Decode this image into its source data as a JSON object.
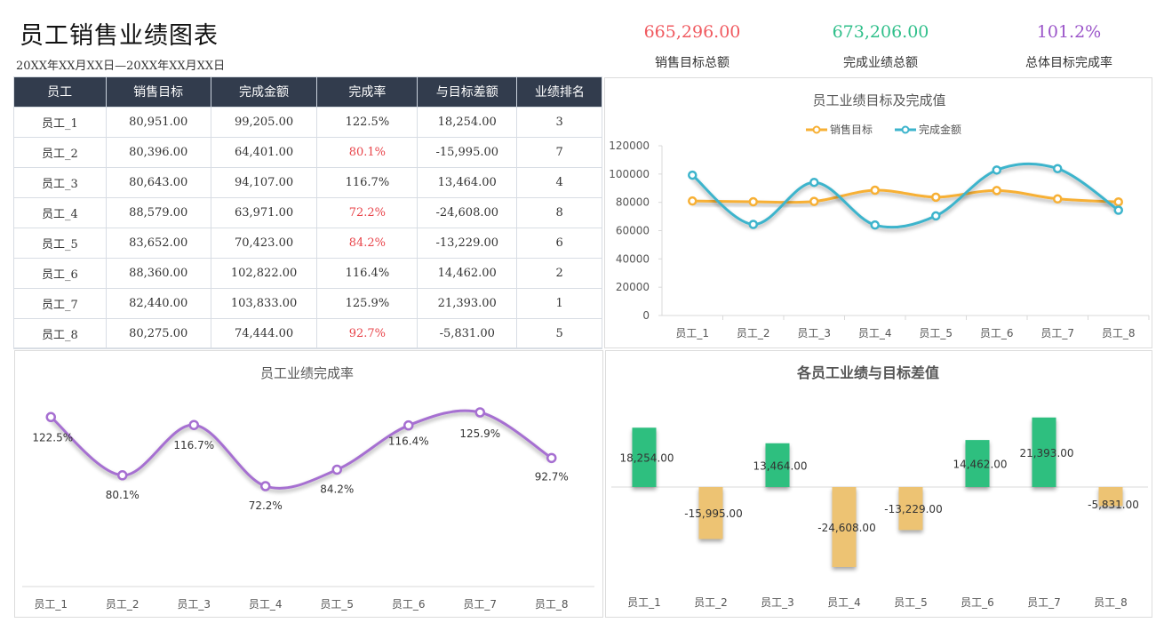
{
  "header": {
    "title": "员工销售业绩图表",
    "date_range": "20XX年XX月XX日—20XX年XX月XX日"
  },
  "kpis": [
    {
      "value": "665,296.00",
      "label": "销售目标总额",
      "color": "#f0595f"
    },
    {
      "value": "673,206.00",
      "label": "完成业绩总额",
      "color": "#2fbf8a"
    },
    {
      "value": "101.2%",
      "label": "总体目标完成率",
      "color": "#9b55c9"
    }
  ],
  "table": {
    "headers": [
      "员工",
      "销售目标",
      "完成金额",
      "完成率",
      "与目标差额",
      "业绩排名"
    ],
    "rows": [
      {
        "name": "员工_1",
        "target": "80,951.00",
        "done": "99,205.00",
        "rate": "122.5%",
        "diff": "18,254.00",
        "rank": "3",
        "below": false
      },
      {
        "name": "员工_2",
        "target": "80,396.00",
        "done": "64,401.00",
        "rate": "80.1%",
        "diff": "-15,995.00",
        "rank": "7",
        "below": true
      },
      {
        "name": "员工_3",
        "target": "80,643.00",
        "done": "94,107.00",
        "rate": "116.7%",
        "diff": "13,464.00",
        "rank": "4",
        "below": false
      },
      {
        "name": "员工_4",
        "target": "88,579.00",
        "done": "63,971.00",
        "rate": "72.2%",
        "diff": "-24,608.00",
        "rank": "8",
        "below": true
      },
      {
        "name": "员工_5",
        "target": "83,652.00",
        "done": "70,423.00",
        "rate": "84.2%",
        "diff": "-13,229.00",
        "rank": "6",
        "below": true
      },
      {
        "name": "员工_6",
        "target": "88,360.00",
        "done": "102,822.00",
        "rate": "116.4%",
        "diff": "14,462.00",
        "rank": "2",
        "below": false
      },
      {
        "name": "员工_7",
        "target": "82,440.00",
        "done": "103,833.00",
        "rate": "125.9%",
        "diff": "21,393.00",
        "rank": "1",
        "below": false
      },
      {
        "name": "员工_8",
        "target": "80,275.00",
        "done": "74,444.00",
        "rate": "92.7%",
        "diff": "-5,831.00",
        "rank": "5",
        "below": true
      }
    ],
    "below_color": "#e8444a"
  },
  "chart_data": [
    {
      "type": "line",
      "title": "员工业绩目标及完成值",
      "categories": [
        "员工_1",
        "员工_2",
        "员工_3",
        "员工_4",
        "员工_5",
        "员工_6",
        "员工_7",
        "员工_8"
      ],
      "series": [
        {
          "name": "销售目标",
          "color": "#f7b035",
          "values": [
            80951,
            80396,
            80643,
            88579,
            83652,
            88360,
            82440,
            80275
          ]
        },
        {
          "name": "完成金额",
          "color": "#3db4cc",
          "values": [
            99205,
            64401,
            94107,
            63971,
            70423,
            102822,
            103833,
            74444
          ]
        }
      ],
      "ylim": [
        0,
        120000
      ],
      "yticks": [
        "0",
        "20000",
        "40000",
        "60000",
        "80000",
        "100000",
        "120000"
      ],
      "legend": "top",
      "smooth": true
    },
    {
      "type": "line",
      "title": "员工业绩完成率",
      "categories": [
        "员工_1",
        "员工_2",
        "员工_3",
        "员工_4",
        "员工_5",
        "员工_6",
        "员工_7",
        "员工_8"
      ],
      "series": [
        {
          "name": "完成率",
          "color": "#a66fd1",
          "values": [
            122.5,
            80.1,
            116.7,
            72.2,
            84.2,
            116.4,
            125.9,
            92.7
          ]
        }
      ],
      "labels": [
        "122.5%",
        "80.1%",
        "116.7%",
        "72.2%",
        "84.2%",
        "116.4%",
        "125.9%",
        "92.7%"
      ],
      "smooth": true
    },
    {
      "type": "bar",
      "title": "各员工业绩与目标差值",
      "categories": [
        "员工_1",
        "员工_2",
        "员工_3",
        "员工_4",
        "员工_5",
        "员工_6",
        "员工_7",
        "员工_8"
      ],
      "values": [
        18254,
        -15995,
        13464,
        -24608,
        -13229,
        14462,
        21393,
        -5831
      ],
      "labels": [
        "18,254.00",
        "-15,995.00",
        "13,464.00",
        "-24,608.00",
        "-13,229.00",
        "14,462.00",
        "21,393.00",
        "-5,831.00"
      ],
      "positive_color": "#2dbf7f",
      "negative_color": "#edc373"
    }
  ]
}
